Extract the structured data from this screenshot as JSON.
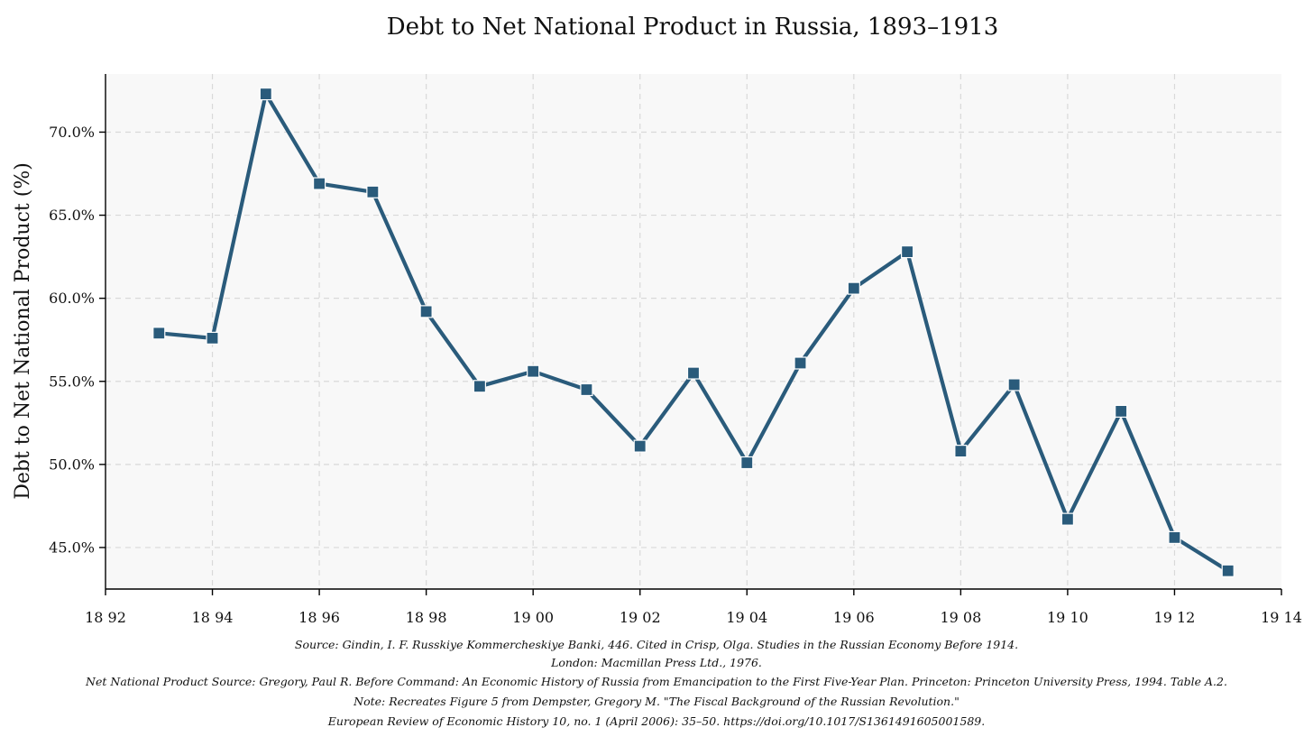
{
  "chart_data": {
    "type": "line",
    "title": "Debt to Net National Product in Russia, 1893–1913",
    "xlabel": "",
    "ylabel": "Debt to Net National Product (%)",
    "x_ticks": [
      1892,
      1894,
      1896,
      1898,
      1900,
      1902,
      1904,
      1906,
      1908,
      1910,
      1912,
      1914
    ],
    "x_tick_labels": [
      "18 92",
      "18 94",
      "18 96",
      "18 98",
      "19 00",
      "19 02",
      "19 04",
      "19 06",
      "19 08",
      "19 10",
      "19 12",
      "19 14"
    ],
    "y_ticks": [
      45,
      50,
      55,
      60,
      65,
      70
    ],
    "y_tick_labels": [
      "45.0%",
      "50.0%",
      "55.0%",
      "60.0%",
      "65.0%",
      "70.0%"
    ],
    "xlim": [
      1892,
      1914
    ],
    "ylim": [
      42.5,
      73.5
    ],
    "grid": true,
    "series": [
      {
        "color": "#2a5b7b",
        "marker": "square",
        "x": [
          1893,
          1894,
          1895,
          1896,
          1897,
          1898,
          1899,
          1900,
          1901,
          1902,
          1903,
          1904,
          1905,
          1906,
          1907,
          1908,
          1909,
          1910,
          1911,
          1912,
          1913
        ],
        "values": [
          57.9,
          57.6,
          72.3,
          66.9,
          66.4,
          59.2,
          54.7,
          55.6,
          54.5,
          51.1,
          55.5,
          50.1,
          56.1,
          60.6,
          62.8,
          50.8,
          54.8,
          46.7,
          53.2,
          45.6,
          43.6
        ]
      }
    ],
    "source_lines": [
      "Source: Gindin, I. F. Russkiye Kommercheskiye Banki, 446. Cited in Crisp, Olga. Studies in the Russian Economy Before 1914.",
      "London: Macmillan Press Ltd., 1976.",
      "Net National Product Source: Gregory, Paul R. Before Command: An Economic History of Russia from Emancipation to the First Five-Year Plan. Princeton: Princeton University Press, 1994. Table A.2.",
      "Note: Recreates Figure 5 from Dempster, Gregory M. \"The Fiscal Background of the Russian Revolution.\"",
      "European Review of Economic History 10, no. 1 (April 2006): 35–50. https://doi.org/10.1017/S1361491605001589."
    ],
    "colors": {
      "line": "#2a5b7b",
      "plot_background": "#f8f8f8",
      "grid": "#d9d9d9"
    }
  }
}
